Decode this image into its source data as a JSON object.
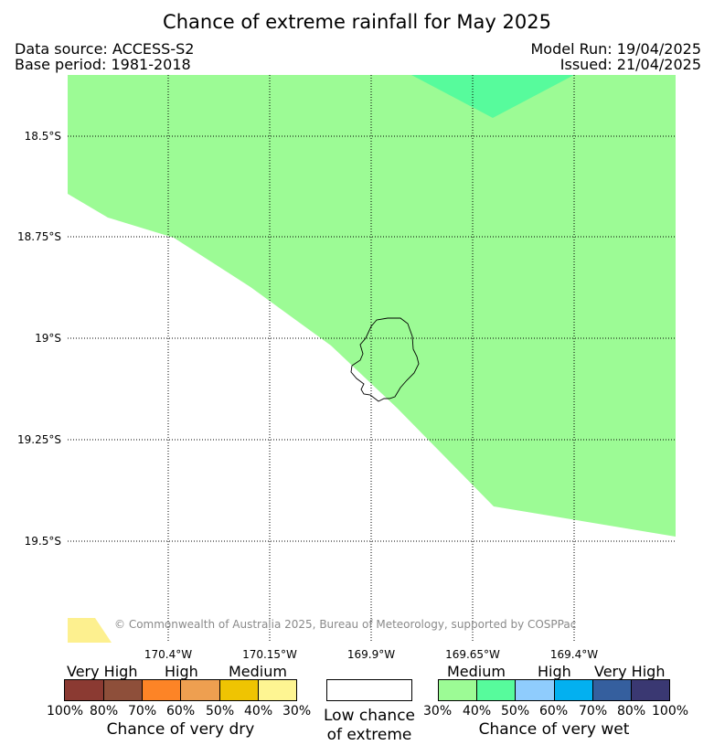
{
  "header": {
    "title": "Chance of extreme rainfall for May 2025",
    "data_source": "Data source: ACCESS-S2",
    "base_period": "Base period: 1981-2018",
    "model_run": "Model Run: 19/04/2025",
    "issued": "Issued: 21/04/2025"
  },
  "map": {
    "latitude_labels": [
      "18.5°S",
      "18.75°S",
      "19°S",
      "19.25°S",
      "19.5°S"
    ],
    "longitude_labels": [
      "170.4°W",
      "170.15°W",
      "169.9°W",
      "169.65°W",
      "169.4°W"
    ],
    "fill_colors": {
      "medium_wet": "#9cfb95",
      "high_wet": "#57fb9c",
      "dry_30_40": "#fdf08f",
      "low": "#ffffff"
    },
    "copyright": "© Commonwealth of Australia 2025, Bureau of Meteorology, supported by COSPPac"
  },
  "legend": {
    "dry": {
      "categories": [
        "Very High",
        "High",
        "Medium"
      ],
      "ticks": [
        "100%",
        "80%",
        "70%",
        "60%",
        "50%",
        "40%",
        "30%"
      ],
      "colors": [
        "#8b3a32",
        "#8e4f3a",
        "#fd8426",
        "#ee9f50",
        "#efc402",
        "#fef592"
      ],
      "caption": "Chance of very dry"
    },
    "neutral": {
      "color": "#ffffff",
      "caption_line1": "Low chance",
      "caption_line2": "of extreme"
    },
    "wet": {
      "categories": [
        "Medium",
        "High",
        "Very High"
      ],
      "ticks": [
        "30%",
        "40%",
        "50%",
        "60%",
        "70%",
        "80%",
        "100%"
      ],
      "colors": [
        "#9cfb95",
        "#57fb9c",
        "#8fccfd",
        "#03b0f0",
        "#355f9e",
        "#3a3872"
      ],
      "caption": "Chance of very wet"
    }
  }
}
